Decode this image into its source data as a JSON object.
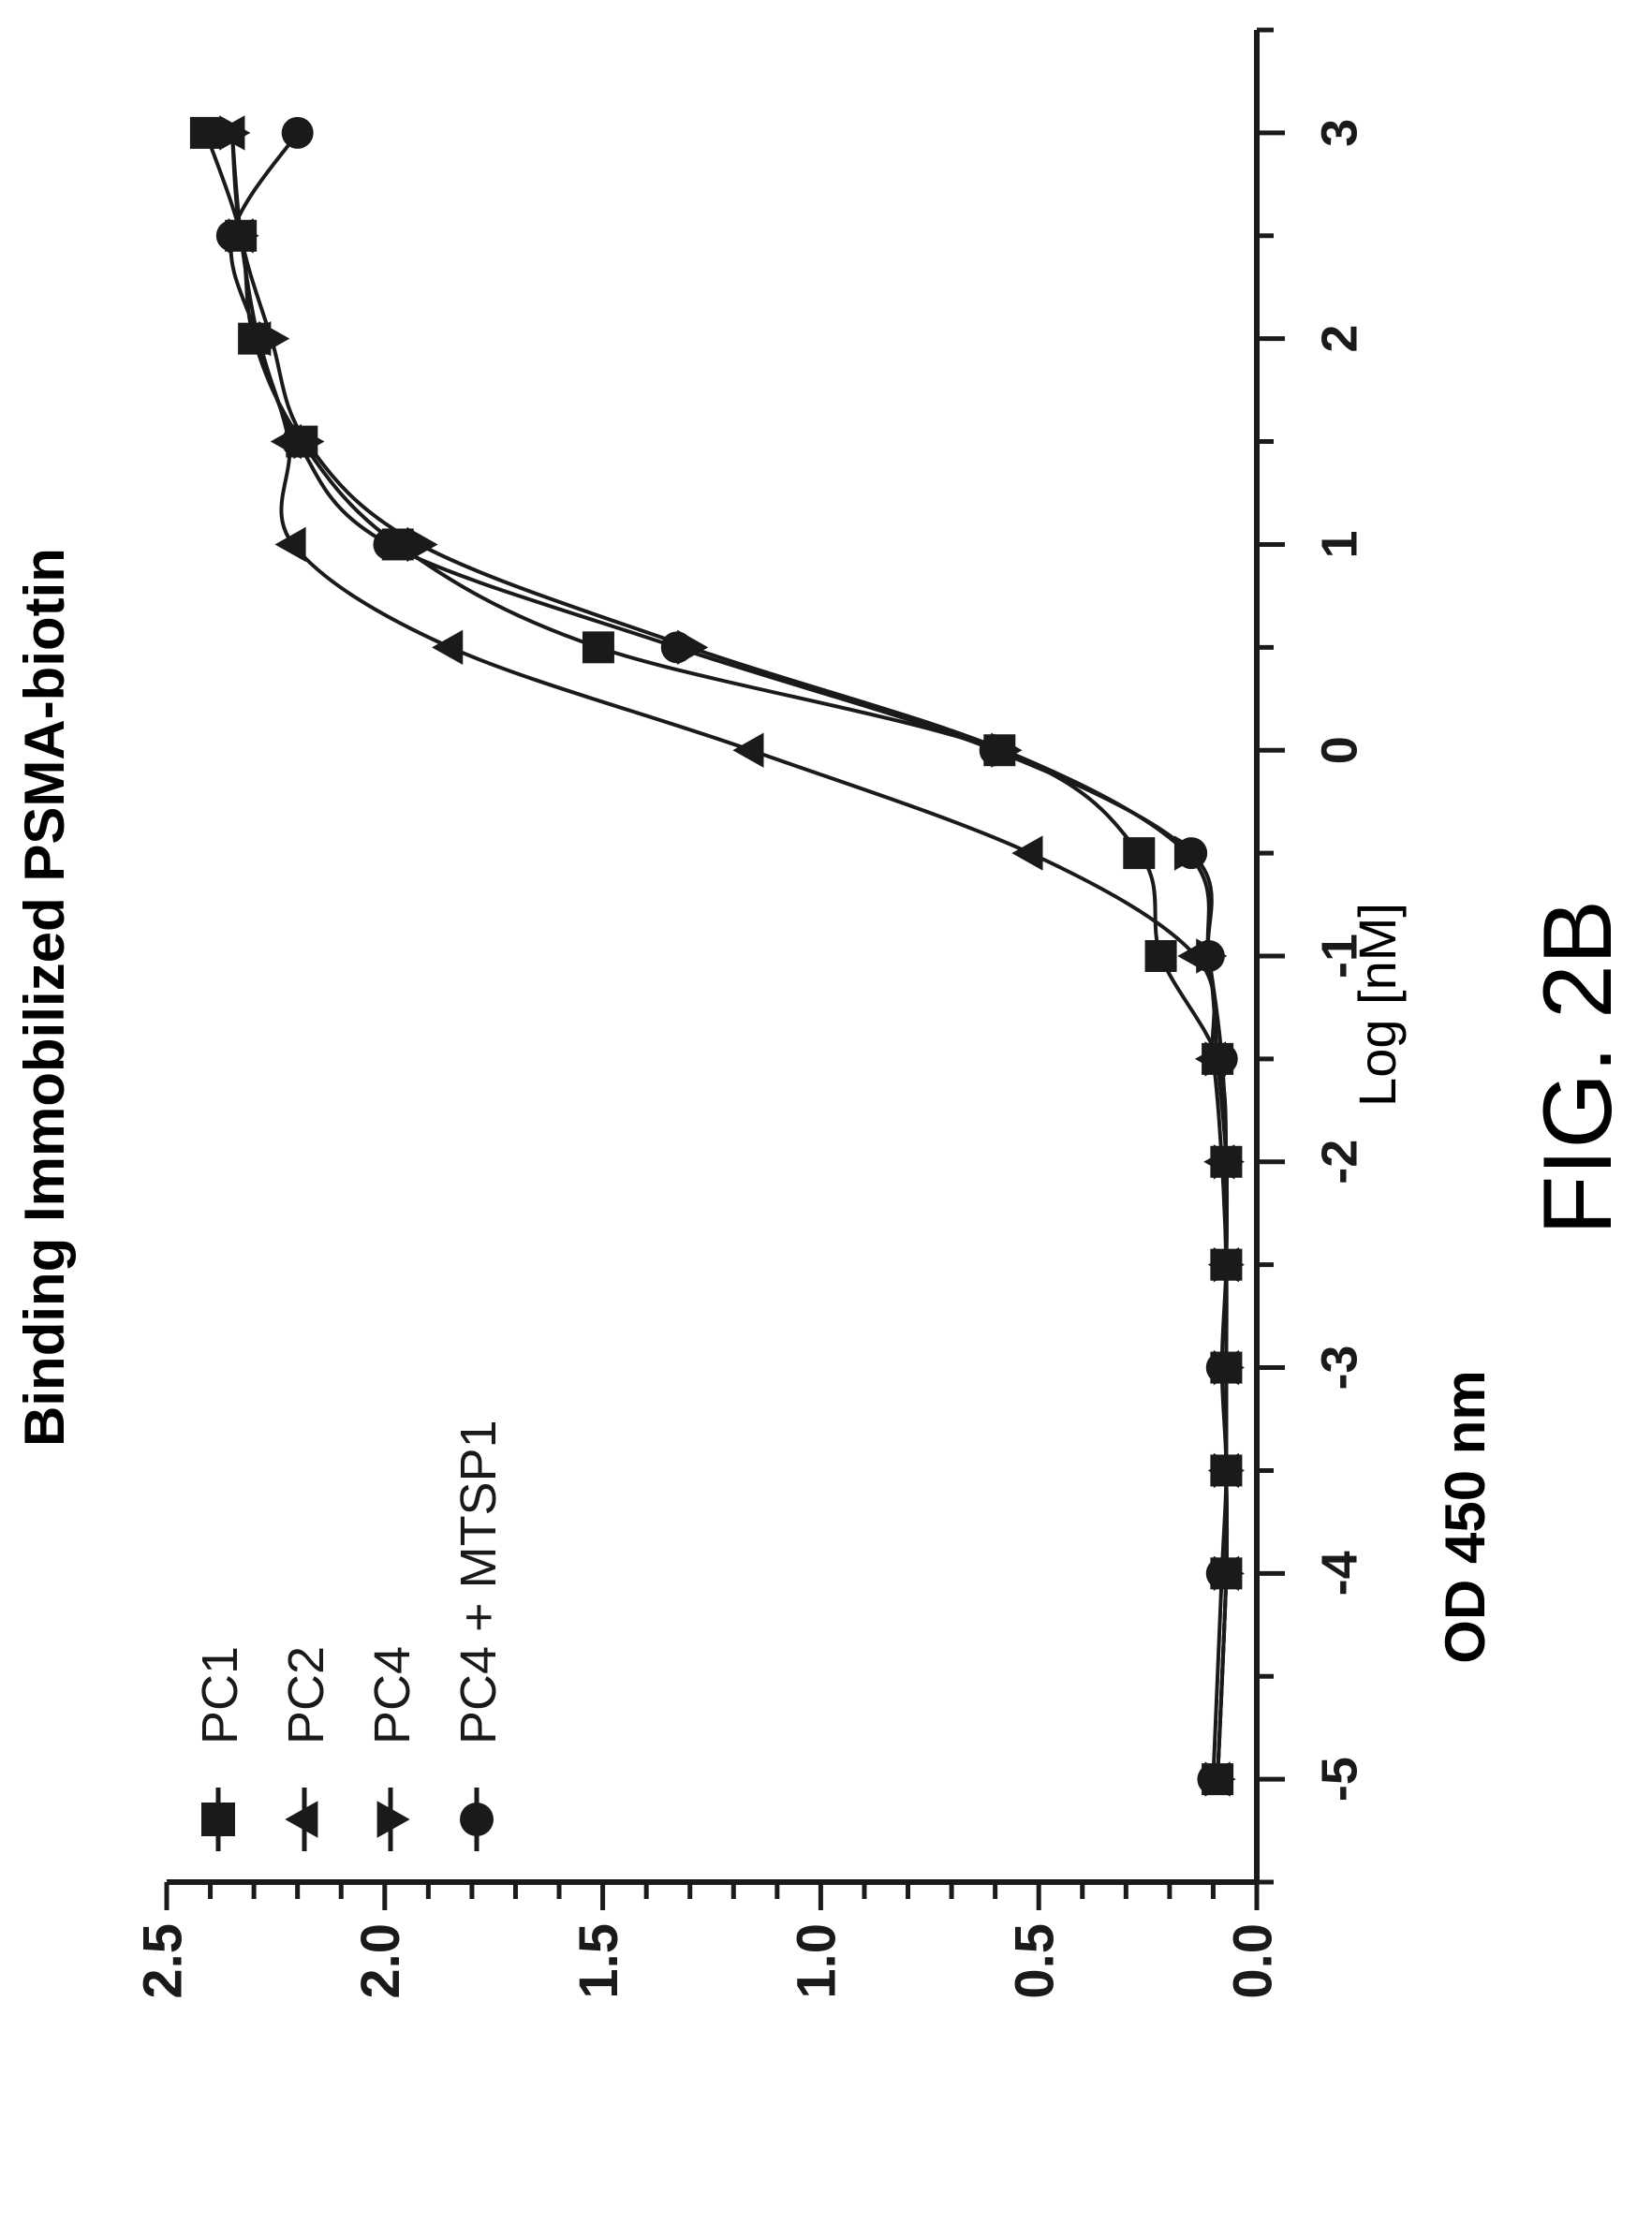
{
  "chart_data": {
    "type": "line",
    "title": "Binding Immobilized PSMA-biotin",
    "xlabel": "Log [nM]",
    "ylabel": "OD 450 nm",
    "xlim": [
      -5.5,
      3.5
    ],
    "ylim": [
      0.0,
      2.5
    ],
    "x_ticks": [
      "-5",
      "-4",
      "-3",
      "-2",
      "-1",
      "0",
      "1",
      "2",
      "3"
    ],
    "x_tick_values": [
      -5,
      -4,
      -3,
      -2,
      -1,
      0,
      1,
      2,
      3
    ],
    "y_ticks": [
      "0.0",
      "0.5",
      "1.0",
      "1.5",
      "2.0",
      "2.5"
    ],
    "y_tick_values": [
      0.0,
      0.5,
      1.0,
      1.5,
      2.0,
      2.5
    ],
    "x_minor_step": 0.5,
    "y_minor_step": 0.1,
    "grid": false,
    "legend_position": "top-left",
    "orientation": "rotated 90 degrees counter-clockwise",
    "series": [
      {
        "name": "PC1",
        "marker": "square",
        "x": [
          -5,
          -4,
          -3.5,
          -3,
          -2.5,
          -2,
          -1.5,
          -1,
          -0.5,
          0,
          0.5,
          1,
          1.5,
          2,
          2.5,
          3
        ],
        "y": [
          0.09,
          0.07,
          0.07,
          0.07,
          0.07,
          0.07,
          0.09,
          0.22,
          0.27,
          0.59,
          1.51,
          1.97,
          2.19,
          2.3,
          2.33,
          2.41
        ]
      },
      {
        "name": "PC2",
        "marker": "triangle-up",
        "x": [
          -5,
          -4,
          -3.5,
          -3,
          -2.5,
          -2,
          -1.5,
          -1,
          -0.5,
          0,
          0.5,
          1,
          1.5,
          2,
          2.5,
          3
        ],
        "y": [
          0.09,
          0.07,
          0.07,
          0.07,
          0.07,
          0.08,
          0.1,
          0.14,
          0.52,
          1.16,
          1.85,
          2.21,
          2.22,
          2.29,
          2.33,
          2.35
        ]
      },
      {
        "name": "PC4",
        "marker": "triangle-down",
        "x": [
          -5,
          -4,
          -3.5,
          -3,
          -2.5,
          -2,
          -1.5,
          -1,
          -0.5,
          0,
          0.5,
          1,
          1.5,
          2,
          2.5,
          3
        ],
        "y": [
          0.09,
          0.07,
          0.07,
          0.07,
          0.07,
          0.07,
          0.09,
          0.11,
          0.16,
          0.58,
          1.3,
          1.92,
          2.18,
          2.26,
          2.33,
          2.35
        ]
      },
      {
        "name": "PC4 + MTSP1",
        "marker": "circle",
        "x": [
          -5,
          -4,
          -3.5,
          -3,
          -2.5,
          -2,
          -1.5,
          -1,
          -0.5,
          0,
          0.5,
          1,
          1.5,
          2,
          2.5,
          3
        ],
        "y": [
          0.1,
          0.08,
          0.07,
          0.08,
          0.07,
          0.07,
          0.08,
          0.11,
          0.15,
          0.6,
          1.33,
          1.99,
          2.2,
          2.29,
          2.35,
          2.2
        ]
      }
    ]
  },
  "figure_label": "FIG. 2B"
}
